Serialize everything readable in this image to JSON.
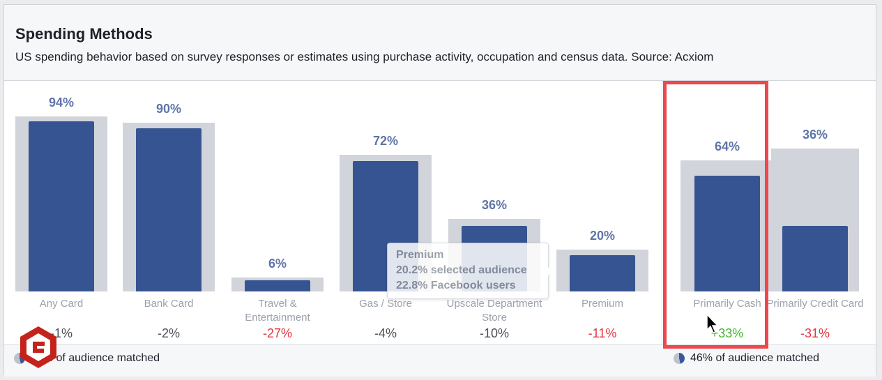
{
  "header": {
    "title": "Spending Methods",
    "subtitle": "US spending behavior based on survey responses or estimates using purchase activity, occupation and census data. Source: Acxiom"
  },
  "chart_data": {
    "type": "bar",
    "categories": [
      "Any Card",
      "Bank Card",
      "Travel & Entertainment",
      "Gas / Store",
      "Upscale Department Store",
      "Premium",
      "Primarily Cash",
      "Primarily Credit Card"
    ],
    "series": [
      {
        "name": "selected audience",
        "values": [
          94,
          90,
          6,
          72,
          36,
          20,
          64,
          36
        ]
      }
    ],
    "labels": [
      "94%",
      "90%",
      "6%",
      "72%",
      "36%",
      "20%",
      "64%",
      "36%"
    ],
    "diffs": [
      "-1%",
      "-2%",
      "-27%",
      "-4%",
      "-10%",
      "-11%",
      "+33%",
      "-31%"
    ],
    "diff_status": [
      "neutral",
      "neutral",
      "neg",
      "neutral",
      "neutral",
      "neg",
      "pos",
      "neg"
    ],
    "ylim": [
      0,
      100
    ]
  },
  "tooltip": {
    "title": "Premium",
    "line1": "20.2% selected audience",
    "line2": "22.8% Facebook users"
  },
  "footer": {
    "left_text": "96% of audience matched",
    "right_text": "46% of audience matched"
  },
  "colors": {
    "bar": "#365492",
    "benchmark": "#d1d4da",
    "negative": "#e5323f",
    "positive": "#42b72a",
    "highlight": "#f0464e"
  }
}
